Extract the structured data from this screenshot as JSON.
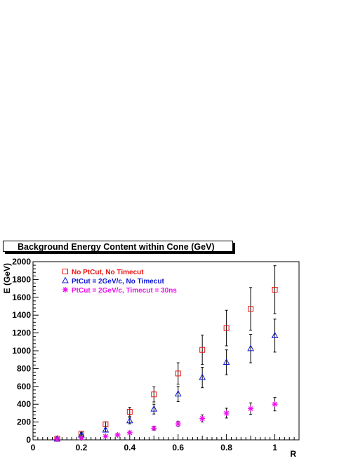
{
  "chart_data": {
    "type": "scatter",
    "title": "Background Energy Content within Cone (GeV)",
    "xlabel": "R",
    "ylabel": "E (GeV)",
    "xlim": [
      0,
      1.1
    ],
    "ylim": [
      0,
      2000
    ],
    "x_ticks": [
      "0",
      "0.2",
      "0.4",
      "0.6",
      "0.8",
      "1"
    ],
    "y_ticks": [
      "0",
      "200",
      "400",
      "600",
      "800",
      "1000",
      "1200",
      "1400",
      "1600",
      "1800",
      "2000"
    ],
    "grid": false,
    "legend_position": "top-left",
    "series": [
      {
        "name": "No PtCut, No Timecut",
        "marker": "open-square",
        "color": "#e8120f",
        "points": [
          {
            "x": 0.1,
            "y": 12,
            "err": 8
          },
          {
            "x": 0.2,
            "y": 70,
            "err": 15
          },
          {
            "x": 0.3,
            "y": 175,
            "err": 25
          },
          {
            "x": 0.4,
            "y": 315,
            "err": 50
          },
          {
            "x": 0.5,
            "y": 510,
            "err": 85
          },
          {
            "x": 0.6,
            "y": 745,
            "err": 120
          },
          {
            "x": 0.7,
            "y": 1010,
            "err": 165
          },
          {
            "x": 0.8,
            "y": 1255,
            "err": 200
          },
          {
            "x": 0.9,
            "y": 1470,
            "err": 240
          },
          {
            "x": 1.0,
            "y": 1685,
            "err": 270
          }
        ]
      },
      {
        "name": "PtCut = 2GeV/c, No Timecut",
        "marker": "open-triangle",
        "color": "#0d15d6",
        "points": [
          {
            "x": 0.1,
            "y": 10,
            "err": 6
          },
          {
            "x": 0.2,
            "y": 55,
            "err": 12
          },
          {
            "x": 0.3,
            "y": 110,
            "err": 20
          },
          {
            "x": 0.4,
            "y": 215,
            "err": 35
          },
          {
            "x": 0.5,
            "y": 345,
            "err": 55
          },
          {
            "x": 0.6,
            "y": 515,
            "err": 85
          },
          {
            "x": 0.7,
            "y": 700,
            "err": 115
          },
          {
            "x": 0.8,
            "y": 870,
            "err": 140
          },
          {
            "x": 0.9,
            "y": 1025,
            "err": 160
          },
          {
            "x": 1.0,
            "y": 1170,
            "err": 185
          }
        ]
      },
      {
        "name": "PtCut = 2GeV/c, Timecut = 30ns",
        "marker": "star",
        "color": "#ee10ee",
        "points": [
          {
            "x": 0.1,
            "y": 8,
            "err": 5
          },
          {
            "x": 0.2,
            "y": 20,
            "err": 6
          },
          {
            "x": 0.3,
            "y": 40,
            "err": 8
          },
          {
            "x": 0.35,
            "y": 55,
            "err": 8
          },
          {
            "x": 0.4,
            "y": 80,
            "err": 12
          },
          {
            "x": 0.5,
            "y": 130,
            "err": 20
          },
          {
            "x": 0.6,
            "y": 180,
            "err": 30
          },
          {
            "x": 0.7,
            "y": 240,
            "err": 40
          },
          {
            "x": 0.8,
            "y": 300,
            "err": 55
          },
          {
            "x": 0.9,
            "y": 350,
            "err": 65
          },
          {
            "x": 1.0,
            "y": 400,
            "err": 75
          }
        ]
      }
    ]
  }
}
